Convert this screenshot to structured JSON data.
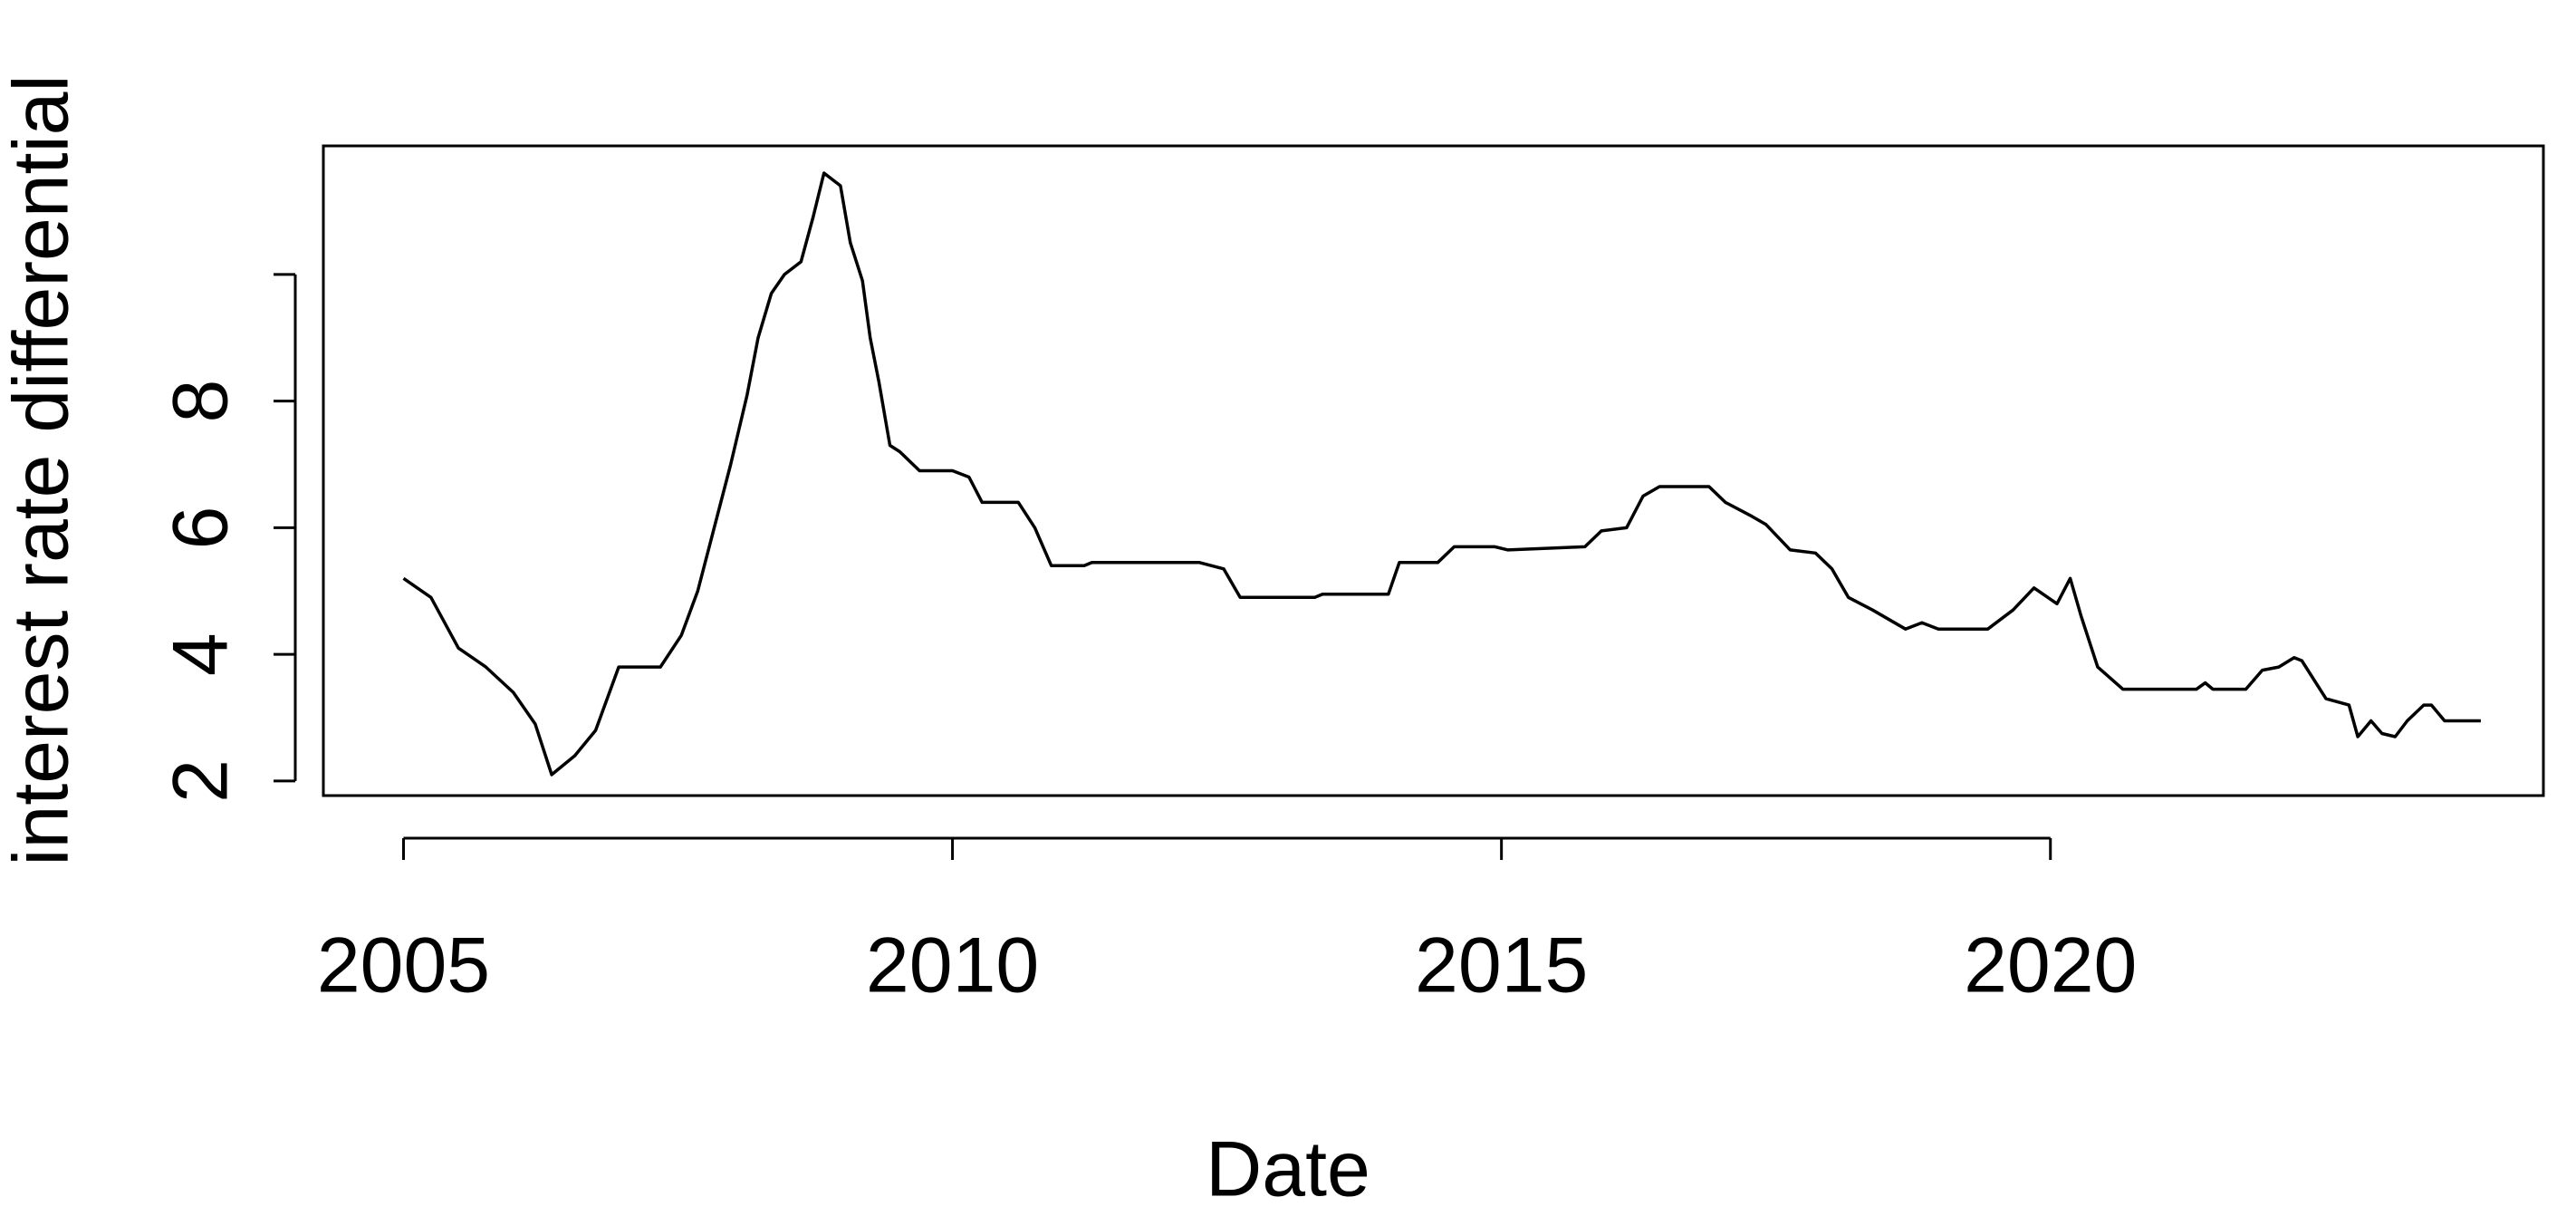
{
  "chart_data": {
    "type": "line",
    "xlabel": "Date",
    "ylabel": "interest rate differential",
    "color": "#000000",
    "x": [
      2005.0,
      2005.25,
      2005.5,
      2005.75,
      2006.0,
      2006.2,
      2006.35,
      2006.56,
      2006.75,
      2006.96,
      2007.34,
      2007.53,
      2007.68,
      2007.83,
      2007.98,
      2008.13,
      2008.23,
      2008.35,
      2008.47,
      2008.62,
      2008.73,
      2008.83,
      2008.98,
      2009.07,
      2009.18,
      2009.25,
      2009.33,
      2009.43,
      2009.52,
      2009.7,
      2010.0,
      2010.15,
      2010.27,
      2010.6,
      2010.75,
      2010.9,
      2011.2,
      2011.27,
      2012.25,
      2012.47,
      2012.62,
      2013.3,
      2013.37,
      2013.97,
      2014.07,
      2014.42,
      2014.57,
      2014.94,
      2015.06,
      2015.76,
      2015.91,
      2016.14,
      2016.29,
      2016.44,
      2016.89,
      2017.04,
      2017.26,
      2017.41,
      2017.63,
      2017.86,
      2018.01,
      2018.16,
      2018.38,
      2018.68,
      2018.83,
      2018.98,
      2019.43,
      2019.66,
      2019.85,
      2020.06,
      2020.18,
      2020.28,
      2020.43,
      2020.66,
      2021.33,
      2021.41,
      2021.48,
      2021.78,
      2021.93,
      2022.08,
      2022.22,
      2022.29,
      2022.51,
      2022.72,
      2022.8,
      2022.92,
      2023.02,
      2023.14,
      2023.25,
      2023.4,
      2023.47,
      2023.59,
      2023.92
    ],
    "values": [
      5.2,
      4.9,
      4.1,
      3.8,
      3.4,
      2.9,
      2.1,
      2.4,
      2.8,
      3.8,
      3.8,
      4.3,
      5.0,
      6.0,
      7.0,
      8.1,
      9.0,
      9.7,
      10.0,
      10.2,
      10.9,
      11.6,
      11.4,
      10.5,
      9.9,
      9.0,
      8.3,
      7.3,
      7.2,
      6.9,
      6.9,
      6.8,
      6.4,
      6.4,
      6.0,
      5.4,
      5.4,
      5.45,
      5.45,
      5.35,
      4.9,
      4.9,
      4.95,
      4.95,
      5.45,
      5.45,
      5.7,
      5.7,
      5.65,
      5.7,
      5.95,
      6.0,
      6.5,
      6.65,
      6.65,
      6.4,
      6.2,
      6.05,
      5.65,
      5.6,
      5.35,
      4.9,
      4.7,
      4.4,
      4.5,
      4.4,
      4.4,
      4.7,
      5.05,
      4.8,
      5.2,
      4.6,
      3.8,
      3.45,
      3.45,
      3.55,
      3.45,
      3.45,
      3.75,
      3.8,
      3.95,
      3.9,
      3.3,
      3.2,
      2.7,
      2.95,
      2.75,
      2.7,
      2.95,
      3.2,
      3.2,
      2.95,
      2.95
    ],
    "xlim": [
      2004.27,
      2024.49
    ],
    "ylim": [
      1.77,
      12.03
    ],
    "xticks": [
      2005,
      2010,
      2015,
      2020
    ],
    "yticks": [
      2,
      4,
      6,
      8,
      {
        "value": 10,
        "label": null
      }
    ]
  }
}
